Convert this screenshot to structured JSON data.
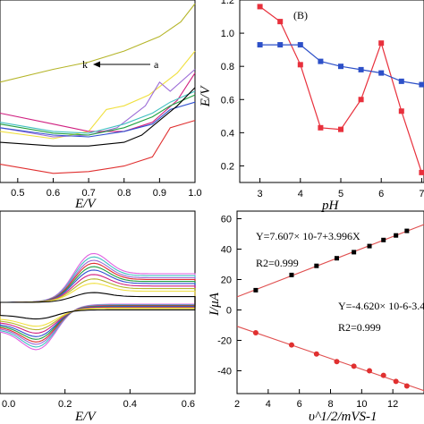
{
  "chart_data": [
    {
      "id": "panelA",
      "type": "line",
      "xlabel": "E/V",
      "xlim": [
        0.45,
        1.0
      ],
      "xticks": [
        "0.5",
        "0.6",
        "0.7",
        "0.8",
        "0.9",
        "1.0"
      ],
      "annotation_left": "k",
      "annotation_right": "a",
      "series": [
        {
          "color": "#b5b529",
          "points": [
            [
              0.45,
              0.55
            ],
            [
              0.6,
              0.62
            ],
            [
              0.7,
              0.66
            ],
            [
              0.8,
              0.72
            ],
            [
              0.9,
              0.8
            ],
            [
              0.96,
              0.88
            ],
            [
              1.0,
              0.98
            ]
          ]
        },
        {
          "color": "#f0e040",
          "points": [
            [
              0.45,
              0.28
            ],
            [
              0.6,
              0.24
            ],
            [
              0.7,
              0.28
            ],
            [
              0.75,
              0.4
            ],
            [
              0.8,
              0.42
            ],
            [
              0.87,
              0.48
            ],
            [
              0.95,
              0.6
            ],
            [
              1.0,
              0.72
            ]
          ]
        },
        {
          "color": "#9b6bd6",
          "points": [
            [
              0.45,
              0.3
            ],
            [
              0.6,
              0.25
            ],
            [
              0.7,
              0.26
            ],
            [
              0.78,
              0.3
            ],
            [
              0.86,
              0.42
            ],
            [
              0.9,
              0.55
            ],
            [
              0.93,
              0.5
            ],
            [
              1.0,
              0.62
            ]
          ]
        },
        {
          "color": "#d02080",
          "points": [
            [
              0.45,
              0.38
            ],
            [
              0.6,
              0.32
            ],
            [
              0.7,
              0.28
            ],
            [
              0.8,
              0.28
            ],
            [
              0.88,
              0.33
            ],
            [
              0.95,
              0.45
            ],
            [
              1.0,
              0.6
            ]
          ]
        },
        {
          "color": "#40c0c0",
          "points": [
            [
              0.45,
              0.33
            ],
            [
              0.6,
              0.28
            ],
            [
              0.7,
              0.27
            ],
            [
              0.8,
              0.32
            ],
            [
              0.88,
              0.38
            ],
            [
              0.93,
              0.44
            ],
            [
              1.0,
              0.5
            ]
          ]
        },
        {
          "color": "#20a040",
          "points": [
            [
              0.45,
              0.32
            ],
            [
              0.6,
              0.27
            ],
            [
              0.7,
              0.26
            ],
            [
              0.8,
              0.3
            ],
            [
              0.88,
              0.36
            ],
            [
              0.93,
              0.42
            ],
            [
              1.0,
              0.48
            ]
          ]
        },
        {
          "color": "#3050d0",
          "points": [
            [
              0.45,
              0.3
            ],
            [
              0.6,
              0.26
            ],
            [
              0.7,
              0.25
            ],
            [
              0.8,
              0.28
            ],
            [
              0.88,
              0.32
            ],
            [
              0.93,
              0.4
            ],
            [
              1.0,
              0.44
            ]
          ]
        },
        {
          "color": "#000000",
          "points": [
            [
              0.45,
              0.22
            ],
            [
              0.6,
              0.2
            ],
            [
              0.7,
              0.2
            ],
            [
              0.8,
              0.22
            ],
            [
              0.85,
              0.26
            ],
            [
              0.9,
              0.34
            ],
            [
              0.95,
              0.42
            ],
            [
              1.0,
              0.52
            ]
          ]
        },
        {
          "color": "#e03030",
          "points": [
            [
              0.45,
              0.1
            ],
            [
              0.6,
              0.05
            ],
            [
              0.7,
              0.06
            ],
            [
              0.8,
              0.09
            ],
            [
              0.88,
              0.14
            ],
            [
              0.93,
              0.3
            ],
            [
              1.0,
              0.34
            ]
          ]
        }
      ]
    },
    {
      "id": "panelB",
      "type": "line",
      "label": "(B)",
      "xlabel": "pH",
      "ylabel": "E/V",
      "xlim": [
        2.5,
        7.5
      ],
      "ylim": [
        0.1,
        1.2
      ],
      "xticks": [
        "3",
        "4",
        "5",
        "6",
        "7"
      ],
      "yticks": [
        "0.2",
        "0.4",
        "0.6",
        "0.8",
        "1.0",
        "1.2"
      ],
      "series": [
        {
          "color": "#e8303c",
          "marker": "square",
          "x": [
            3.0,
            3.5,
            4.0,
            4.5,
            5.0,
            5.5,
            6.0,
            6.5,
            7.0,
            7.3
          ],
          "y": [
            1.16,
            1.07,
            0.81,
            0.43,
            0.42,
            0.6,
            0.94,
            0.53,
            0.16,
            0.13
          ]
        },
        {
          "color": "#2d50c8",
          "marker": "square",
          "x": [
            3.0,
            3.5,
            4.0,
            4.5,
            5.0,
            5.5,
            6.0,
            6.5,
            7.0,
            7.3
          ],
          "y": [
            0.93,
            0.93,
            0.93,
            0.83,
            0.8,
            0.78,
            0.76,
            0.71,
            0.69,
            0.68
          ]
        }
      ]
    },
    {
      "id": "panelC",
      "type": "line",
      "xlabel": "E/V",
      "xlim": [
        0.0,
        0.6
      ],
      "xticks": [
        "0.0",
        "0.2",
        "0.4",
        "0.6"
      ],
      "series_colors": [
        "#e060e0",
        "#40c0c0",
        "#9b6bd6",
        "#e03030",
        "#20a040",
        "#3050d0",
        "#d02080",
        "#b5b529",
        "#f0e040",
        "#000000"
      ],
      "peak_amplitudes": [
        1.0,
        0.93,
        0.86,
        0.8,
        0.73,
        0.66,
        0.57,
        0.48,
        0.39,
        0.2
      ]
    },
    {
      "id": "panelD",
      "type": "scatter",
      "xlabel": "υ^1/2/mVS-1",
      "ylabel": "I/μA",
      "xlim": [
        2,
        14
      ],
      "ylim": [
        -55,
        65
      ],
      "xticks": [
        "2",
        "4",
        "6",
        "8",
        "10",
        "12"
      ],
      "yticks": [
        "-40",
        "-20",
        "0",
        "20",
        "40",
        "60"
      ],
      "annotations": {
        "eq1": "Y=7.607× 10-7+3.996X",
        "r1": "R2=0.999",
        "eq2": "Y=-4.620× 10-6-3.4",
        "r2": "R2=0.999"
      },
      "series": [
        {
          "color": "#000000",
          "line_color": "#e05050",
          "x": [
            3.2,
            5.5,
            7.1,
            8.4,
            9.5,
            10.5,
            11.4,
            12.2,
            12.9
          ],
          "y": [
            13,
            23,
            29,
            34,
            38,
            42,
            46,
            49,
            52
          ]
        },
        {
          "color": "#e03030",
          "line_color": "#e05050",
          "x": [
            3.2,
            5.5,
            7.1,
            8.4,
            9.5,
            10.5,
            11.4,
            12.2,
            12.9
          ],
          "y": [
            -15,
            -23,
            -29,
            -34,
            -37,
            -40,
            -43,
            -47,
            -50
          ]
        }
      ]
    }
  ]
}
